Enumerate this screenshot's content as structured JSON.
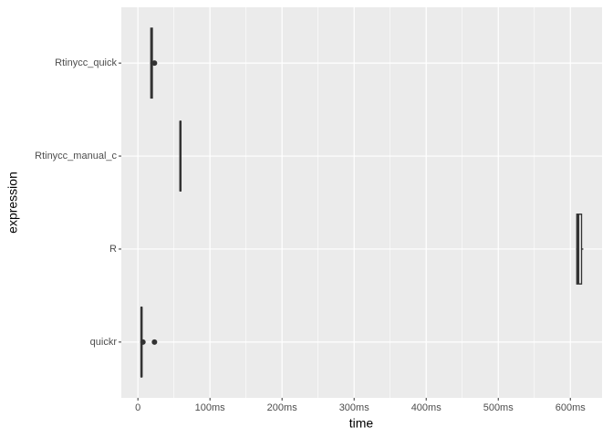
{
  "chart_data": {
    "type": "boxplot",
    "x_label": "time",
    "y_label": "expression",
    "categories": [
      "Rtinycc_quick",
      "Rtinycc_manual_c",
      "R",
      "quickr"
    ],
    "boxes": [
      {
        "min": 17,
        "q1": 18,
        "median": 19,
        "q3": 20,
        "max": 21,
        "outliers": [
          23
        ]
      },
      {
        "min": 58,
        "q1": 58.5,
        "median": 59,
        "q3": 59.5,
        "max": 60,
        "outliers": []
      },
      {
        "min": 608,
        "q1": 609,
        "median": 611,
        "q3": 615.5,
        "max": 618,
        "outliers": []
      },
      {
        "min": 4,
        "q1": 4.5,
        "median": 5,
        "q3": 5.5,
        "max": 6,
        "outliers": [
          7,
          23
        ]
      }
    ],
    "xlim": [
      -23,
      644
    ],
    "xticks": [
      0,
      {
        "value": 100,
        "label": "100ms"
      },
      {
        "value": 200,
        "label": "200ms"
      },
      {
        "value": 300,
        "label": "300ms"
      },
      {
        "value": 400,
        "label": "400ms"
      },
      {
        "value": 500,
        "label": "500ms"
      },
      {
        "value": 600,
        "label": "600ms"
      }
    ],
    "grid": true,
    "color": "#333333",
    "panel_color": "#ebebeb"
  }
}
